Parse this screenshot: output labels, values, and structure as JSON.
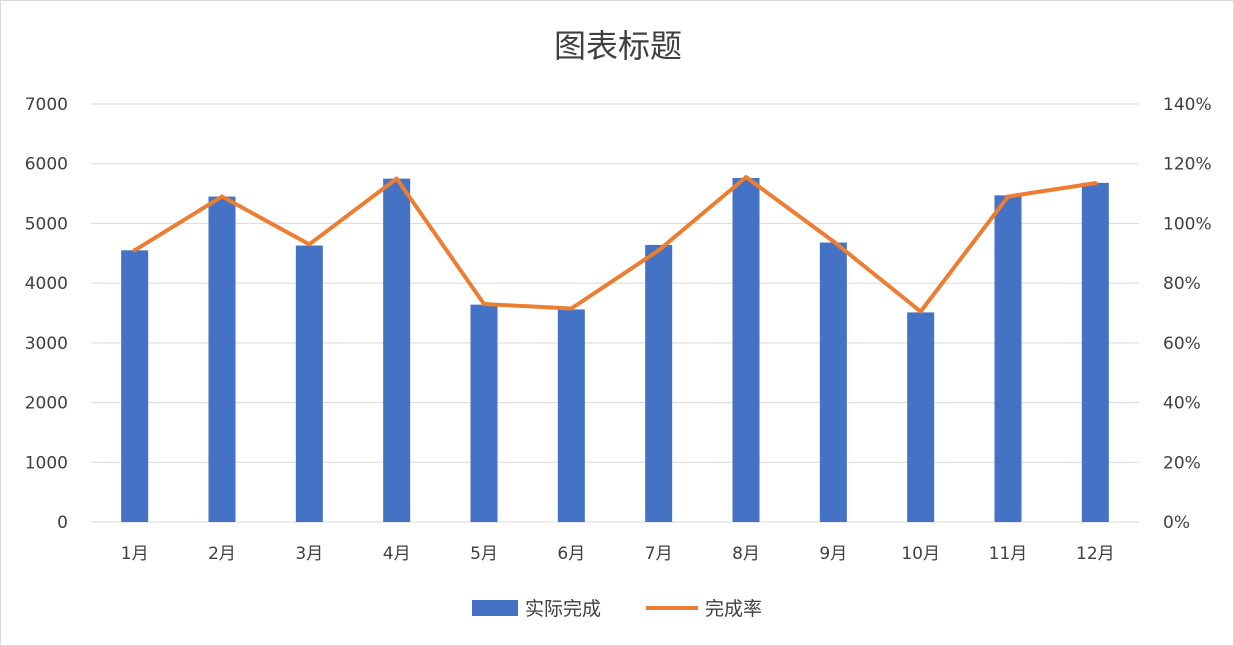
{
  "chart_data": {
    "type": "bar",
    "title": "图表标题",
    "categories": [
      "1月",
      "2月",
      "3月",
      "4月",
      "5月",
      "6月",
      "7月",
      "8月",
      "9月",
      "10月",
      "11月",
      "12月"
    ],
    "series": [
      {
        "name": "实际完成",
        "type": "bar",
        "axis": "left",
        "color": "#4472C4",
        "values": [
          4550,
          5450,
          4630,
          5750,
          3640,
          3560,
          4640,
          5760,
          4680,
          3510,
          5470,
          5680
        ]
      },
      {
        "name": "完成率",
        "type": "line",
        "axis": "right",
        "color": "#ED7D31",
        "values": [
          0.91,
          1.09,
          0.93,
          1.15,
          0.73,
          0.715,
          0.91,
          1.155,
          0.94,
          0.705,
          1.09,
          1.135
        ]
      }
    ],
    "y_left": {
      "ylim": [
        0,
        7000
      ],
      "ticks": [
        "0",
        "1000",
        "2000",
        "3000",
        "4000",
        "5000",
        "6000",
        "7000"
      ]
    },
    "y_right": {
      "ylim": [
        0,
        1.4
      ],
      "ticks": [
        "0%",
        "20%",
        "40%",
        "60%",
        "80%",
        "100%",
        "120%",
        "140%"
      ]
    },
    "grid": true,
    "legend": "bottom-center"
  }
}
